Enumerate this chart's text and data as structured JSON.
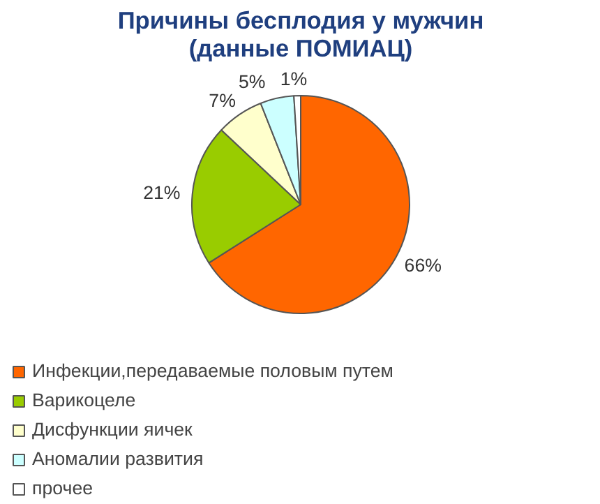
{
  "chart_data": {
    "type": "pie",
    "title": "Причины бесплодия у мужчин\n(данные ПОМИАЦ)",
    "categories": [
      "Инфекции,передаваемые половым путем",
      "Варикоцеле",
      "Дисфункции яичек",
      "Аномалии развития",
      "прочее"
    ],
    "values": [
      66,
      21,
      7,
      5,
      1
    ],
    "colors": [
      "#ff6600",
      "#99cc00",
      "#ffffcc",
      "#ccffff",
      "#ffffff"
    ],
    "value_labels": [
      "66%",
      "21%",
      "7%",
      "5%",
      "1%"
    ],
    "legend": "bottom"
  }
}
